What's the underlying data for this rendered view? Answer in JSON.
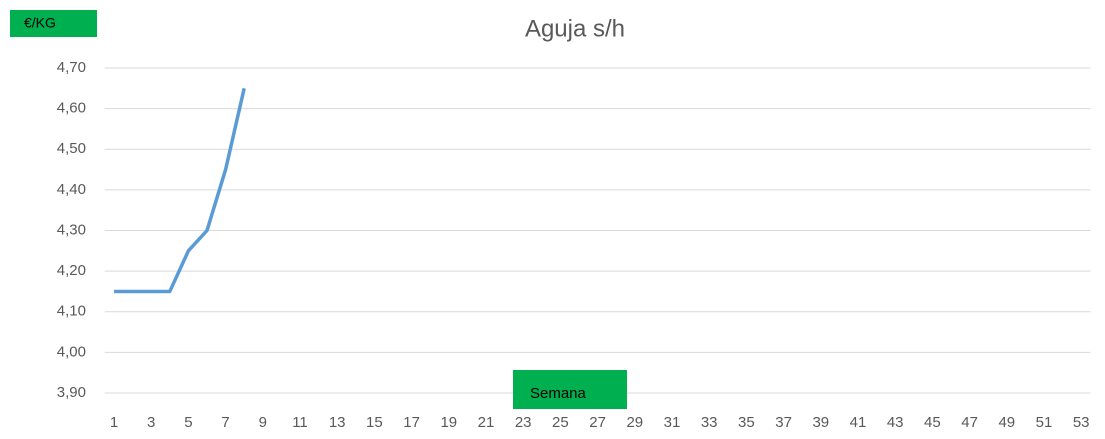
{
  "chart_data": {
    "type": "line",
    "title": "Aguja   s/h",
    "y_label": "€/KG",
    "x_label": "Semana",
    "categories": [
      "1",
      null,
      "3",
      null,
      "5",
      null,
      "7",
      null,
      "9",
      null,
      "11",
      null,
      "13",
      null,
      "15",
      null,
      "17",
      null,
      "19",
      null,
      "21",
      null,
      "23",
      null,
      "25",
      null,
      "27",
      null,
      "29",
      null,
      "31",
      null,
      "33",
      null,
      "35",
      null,
      "37",
      null,
      "39",
      null,
      "41",
      null,
      "43",
      null,
      "45",
      null,
      "47",
      null,
      "49",
      null,
      "51",
      null,
      "53"
    ],
    "series": [
      {
        "name": "Aguja s/h",
        "color": "#5b9bd5",
        "values": [
          4.15,
          4.15,
          4.15,
          4.15,
          4.25,
          4.3,
          4.45,
          4.65,
          null,
          null,
          null,
          null,
          null,
          null,
          null,
          null,
          null,
          null,
          null,
          null,
          null,
          null,
          null,
          null,
          null,
          null,
          null,
          null,
          null,
          null,
          null,
          null,
          null,
          null,
          null,
          null,
          null,
          null,
          null,
          null,
          null,
          null,
          null,
          null,
          null,
          null,
          null,
          null,
          null,
          null,
          null,
          null,
          null
        ]
      }
    ],
    "ylim": [
      3.9,
      4.7
    ],
    "yticks": [
      {
        "value": 3.9,
        "label": "3,90"
      },
      {
        "value": 4.0,
        "label": "4,00"
      },
      {
        "value": 4.1,
        "label": "4,10"
      },
      {
        "value": 4.2,
        "label": "4,20"
      },
      {
        "value": 4.3,
        "label": "4,30"
      },
      {
        "value": 4.4,
        "label": "4,40"
      },
      {
        "value": 4.5,
        "label": "4,50"
      },
      {
        "value": 4.6,
        "label": "4,60"
      },
      {
        "value": 4.7,
        "label": "4,70"
      }
    ],
    "grid": true
  }
}
